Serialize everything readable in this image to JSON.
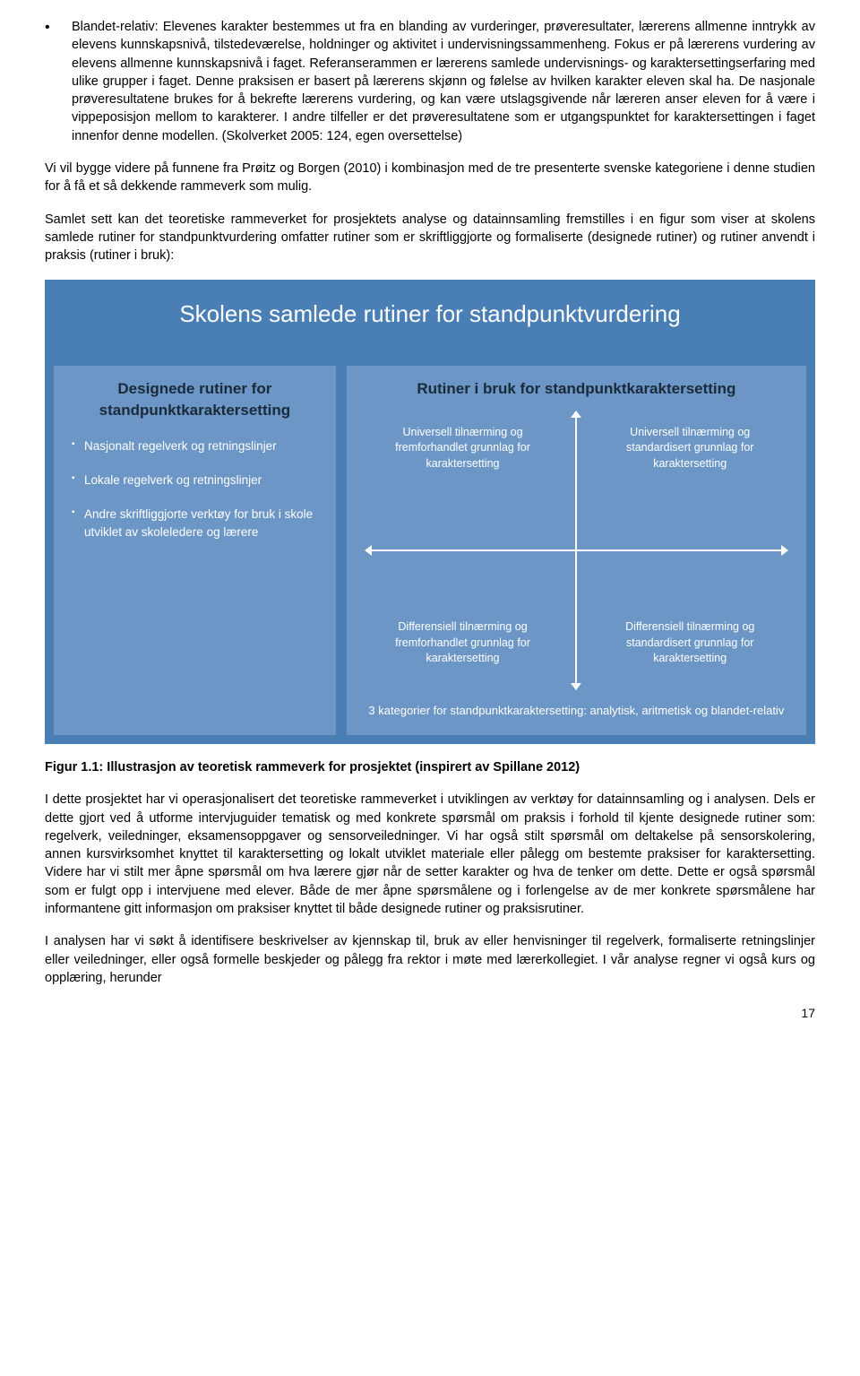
{
  "bullet": {
    "label": "Blandet-relativ: Elevenes karakter bestemmes ut fra en blanding av vurderinger, prøveresultater, lærerens allmenne inntrykk av elevens kunnskapsnivå, tilstedeværelse, holdninger og aktivitet i undervisningssammenheng. Fokus er på lærerens vurdering av elevens allmenne kunnskapsnivå i faget. Referanserammen er lærerens samlede undervisnings- og karaktersettingserfaring med ulike grupper i faget. Denne praksisen er basert på lærerens skjønn og følelse av hvilken karakter eleven skal ha. De nasjonale prøveresultatene brukes for å bekrefte lærerens vurdering, og kan være utslagsgivende når læreren anser eleven for å være i vippeposisjon mellom to karakterer. I andre tilfeller er det prøveresultatene som er utgangspunktet for karaktersettingen i faget innenfor denne modellen. (Skolverket 2005: 124, egen oversettelse)"
  },
  "para1": "Vi vil bygge videre på funnene fra Prøitz og Borgen (2010) i kombinasjon med de tre presenterte svenske kategoriene i denne studien for å få et så dekkende rammeverk som mulig.",
  "para2": "Samlet sett kan det teoretiske rammeverket for prosjektets analyse og datainnsamling fremstilles i en figur som viser at skolens samlede rutiner for standpunktvurdering omfatter rutiner som er skriftliggjorte og formaliserte (designede rutiner) og rutiner anvendt i praksis (rutiner i bruk):",
  "diagram": {
    "title": "Skolens samlede rutiner for standpunktvurdering",
    "left": {
      "heading": "Designede rutiner for standpunktkaraktersetting",
      "items": [
        "Nasjonalt regelverk og retningslinjer",
        "Lokale regelverk og retningslinjer",
        "Andre skriftliggjorte verktøy for bruk i skole utviklet av skoleledere og lærere"
      ]
    },
    "right": {
      "heading": "Rutiner i bruk for standpunktkaraktersetting",
      "quad": {
        "tl": "Universell tilnærming og fremforhandlet grunnlag for karaktersetting",
        "tr": "Universell tilnærming og standardisert grunnlag for karaktersetting",
        "bl": "Differensiell tilnærming og fremforhandlet grunnlag for karaktersetting",
        "br": "Differensiell tilnærming og standardisert grunnlag for karaktersetting"
      },
      "footer": "3 kategorier for standpunktkaraktersetting: analytisk, aritmetisk og blandet-relativ"
    },
    "colors": {
      "outer": "#4a7fb5",
      "panel": "#6b96c5",
      "heading": "#1a2a3a",
      "text": "#ffffff"
    }
  },
  "figure_caption": "Figur 1.1: Illustrasjon av teoretisk rammeverk for prosjektet (inspirert av Spillane 2012)",
  "para3": "I dette prosjektet har vi operasjonalisert det teoretiske rammeverket i utviklingen av verktøy for datainnsamling og i analysen. Dels er dette gjort ved å utforme intervjuguider tematisk og med konkrete spørsmål om praksis i forhold til kjente designede rutiner som: regelverk, veiledninger, eksamensoppgaver og sensorveiledninger. Vi har også stilt spørsmål om deltakelse på sensorskolering, annen kursvirksomhet knyttet til karaktersetting og lokalt utviklet materiale eller pålegg om bestemte praksiser for karaktersetting. Videre har vi stilt mer åpne spørsmål om hva lærere gjør når de setter karakter og hva de tenker om dette. Dette er også spørsmål som er fulgt opp i intervjuene med elever. Både de mer åpne spørsmålene og i forlengelse av de mer konkrete spørsmålene har informantene gitt informasjon om praksiser knyttet til både designede rutiner og praksisrutiner.",
  "para4": "I analysen har vi søkt å identifisere beskrivelser av kjennskap til, bruk av eller henvisninger til regelverk, formaliserte retningslinjer eller veiledninger, eller også formelle beskjeder og pålegg fra rektor i møte med lærerkollegiet. I vår analyse regner vi også kurs og opplæring, herunder",
  "page_number": "17"
}
